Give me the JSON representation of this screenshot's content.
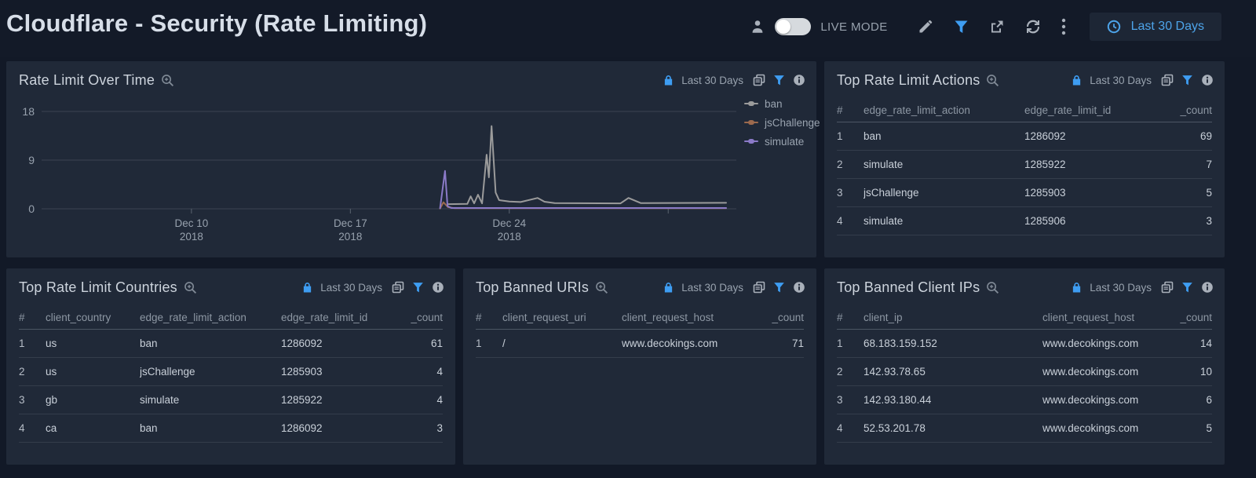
{
  "app": {
    "title": "Cloudflare - Security (Rate Limiting)"
  },
  "topbar": {
    "live_mode_label": "LIVE MODE",
    "time_button_label": "Last 30 Days"
  },
  "panels": {
    "chart": {
      "title": "Rate Limit Over Time",
      "time_range": "Last 30 Days"
    },
    "actions": {
      "title": "Top Rate Limit Actions",
      "time_range": "Last 30 Days",
      "columns": [
        "#",
        "edge_rate_limit_action",
        "edge_rate_limit_id",
        "_count"
      ],
      "rows": [
        [
          "1",
          "ban",
          "1286092",
          "69"
        ],
        [
          "2",
          "simulate",
          "1285922",
          "7"
        ],
        [
          "3",
          "jsChallenge",
          "1285903",
          "5"
        ],
        [
          "4",
          "simulate",
          "1285906",
          "3"
        ]
      ]
    },
    "countries": {
      "title": "Top Rate Limit Countries",
      "time_range": "Last 30 Days",
      "columns": [
        "#",
        "client_country",
        "edge_rate_limit_action",
        "edge_rate_limit_id",
        "_count"
      ],
      "rows": [
        [
          "1",
          "us",
          "ban",
          "1286092",
          "61"
        ],
        [
          "2",
          "us",
          "jsChallenge",
          "1285903",
          "4"
        ],
        [
          "3",
          "gb",
          "simulate",
          "1285922",
          "4"
        ],
        [
          "4",
          "ca",
          "ban",
          "1286092",
          "3"
        ]
      ]
    },
    "uris": {
      "title": "Top Banned URIs",
      "time_range": "Last 30 Days",
      "columns": [
        "#",
        "client_request_uri",
        "client_request_host",
        "_count"
      ],
      "rows": [
        [
          "1",
          "/",
          "www.decokings.com",
          "71"
        ]
      ]
    },
    "ips": {
      "title": "Top Banned Client IPs",
      "time_range": "Last 30 Days",
      "columns": [
        "#",
        "client_ip",
        "client_request_host",
        "_count"
      ],
      "rows": [
        [
          "1",
          "68.183.159.152",
          "www.decokings.com",
          "14"
        ],
        [
          "2",
          "142.93.78.65",
          "www.decokings.com",
          "10"
        ],
        [
          "3",
          "142.93.180.44",
          "www.decokings.com",
          "6"
        ],
        [
          "4",
          "52.53.201.78",
          "www.decokings.com",
          "5"
        ]
      ]
    }
  },
  "chart_data": {
    "type": "line",
    "title": "Rate Limit Over Time",
    "x_axis": {
      "unit": "days_since_dec1_2018",
      "min": 2.4,
      "max": 33,
      "ticks": [
        {
          "x": 9,
          "label": "Dec 10",
          "sublabel": "2018"
        },
        {
          "x": 16,
          "label": "Dec 17",
          "sublabel": "2018"
        },
        {
          "x": 23,
          "label": "Dec 24",
          "sublabel": "2018"
        },
        {
          "x": 30,
          "label": "",
          "sublabel": ""
        }
      ]
    },
    "y_axis": {
      "min": 0,
      "max": 18,
      "ticks": [
        0,
        9,
        18
      ]
    },
    "grid": true,
    "legend_position": "right",
    "legend": [
      {
        "label": "ban",
        "color": "#9b9b9b"
      },
      {
        "label": "jsChallenge",
        "color": "#9c6a4e"
      },
      {
        "label": "simulate",
        "color": "#8b7ac8"
      }
    ],
    "series": [
      {
        "name": "jsChallenge",
        "color": "#9c6a4e",
        "points": [
          [
            19.95,
            0.05
          ],
          [
            20.1,
            1.2
          ],
          [
            20.3,
            0.3
          ],
          [
            20.6,
            0.1
          ],
          [
            32.55,
            0.1
          ]
        ]
      },
      {
        "name": "ban",
        "color": "#9b9b9b",
        "points": [
          [
            20.3,
            0.85
          ],
          [
            21.15,
            0.9
          ],
          [
            21.3,
            2.3
          ],
          [
            21.45,
            1.0
          ],
          [
            21.62,
            2.6
          ],
          [
            21.8,
            1.0
          ],
          [
            22.0,
            10.0
          ],
          [
            22.1,
            5.8
          ],
          [
            22.22,
            15.3
          ],
          [
            22.4,
            3.0
          ],
          [
            22.55,
            1.6
          ],
          [
            23.0,
            1.35
          ],
          [
            23.5,
            1.25
          ],
          [
            24.25,
            2.0
          ],
          [
            24.55,
            1.3
          ],
          [
            25.0,
            1.05
          ],
          [
            27.9,
            1.0
          ],
          [
            28.25,
            2.0
          ],
          [
            28.8,
            1.05
          ],
          [
            32.55,
            1.1
          ]
        ]
      },
      {
        "name": "simulate",
        "color": "#8b7ac8",
        "points": [
          [
            19.95,
            0.1
          ],
          [
            20.05,
            3.3
          ],
          [
            20.17,
            7.0
          ],
          [
            20.28,
            0.5
          ],
          [
            20.45,
            0.15
          ],
          [
            32.55,
            0.15
          ]
        ]
      }
    ]
  },
  "chart_style": {
    "grid_color": "#3c4452",
    "tick_color": "#5a6470",
    "axis_label_color": "#97a1ad"
  }
}
